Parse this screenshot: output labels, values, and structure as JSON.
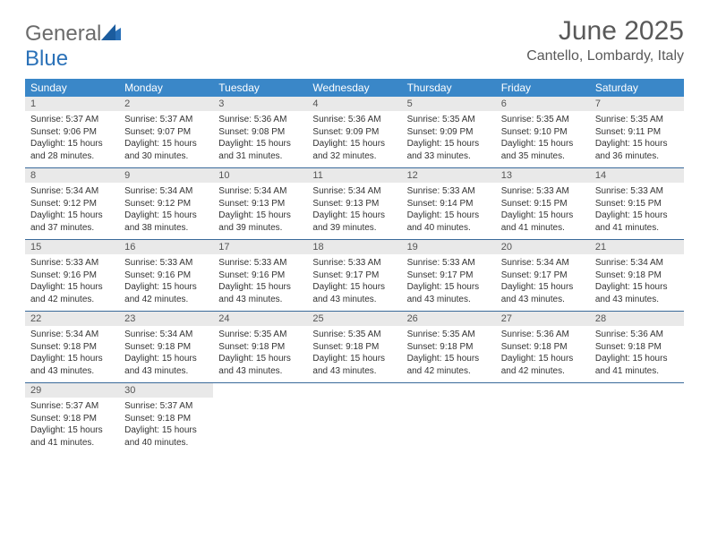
{
  "logo": {
    "part1": "General",
    "part2": "Blue"
  },
  "title": "June 2025",
  "location": "Cantello, Lombardy, Italy",
  "header_color": "#3a87c8",
  "row_border_color": "#3a6a9a",
  "daynum_bg": "#e9e9e9",
  "weekdays": [
    "Sunday",
    "Monday",
    "Tuesday",
    "Wednesday",
    "Thursday",
    "Friday",
    "Saturday"
  ],
  "days": [
    {
      "n": 1,
      "sr": "5:37 AM",
      "ss": "9:06 PM",
      "dl": "15 hours and 28 minutes."
    },
    {
      "n": 2,
      "sr": "5:37 AM",
      "ss": "9:07 PM",
      "dl": "15 hours and 30 minutes."
    },
    {
      "n": 3,
      "sr": "5:36 AM",
      "ss": "9:08 PM",
      "dl": "15 hours and 31 minutes."
    },
    {
      "n": 4,
      "sr": "5:36 AM",
      "ss": "9:09 PM",
      "dl": "15 hours and 32 minutes."
    },
    {
      "n": 5,
      "sr": "5:35 AM",
      "ss": "9:09 PM",
      "dl": "15 hours and 33 minutes."
    },
    {
      "n": 6,
      "sr": "5:35 AM",
      "ss": "9:10 PM",
      "dl": "15 hours and 35 minutes."
    },
    {
      "n": 7,
      "sr": "5:35 AM",
      "ss": "9:11 PM",
      "dl": "15 hours and 36 minutes."
    },
    {
      "n": 8,
      "sr": "5:34 AM",
      "ss": "9:12 PM",
      "dl": "15 hours and 37 minutes."
    },
    {
      "n": 9,
      "sr": "5:34 AM",
      "ss": "9:12 PM",
      "dl": "15 hours and 38 minutes."
    },
    {
      "n": 10,
      "sr": "5:34 AM",
      "ss": "9:13 PM",
      "dl": "15 hours and 39 minutes."
    },
    {
      "n": 11,
      "sr": "5:34 AM",
      "ss": "9:13 PM",
      "dl": "15 hours and 39 minutes."
    },
    {
      "n": 12,
      "sr": "5:33 AM",
      "ss": "9:14 PM",
      "dl": "15 hours and 40 minutes."
    },
    {
      "n": 13,
      "sr": "5:33 AM",
      "ss": "9:15 PM",
      "dl": "15 hours and 41 minutes."
    },
    {
      "n": 14,
      "sr": "5:33 AM",
      "ss": "9:15 PM",
      "dl": "15 hours and 41 minutes."
    },
    {
      "n": 15,
      "sr": "5:33 AM",
      "ss": "9:16 PM",
      "dl": "15 hours and 42 minutes."
    },
    {
      "n": 16,
      "sr": "5:33 AM",
      "ss": "9:16 PM",
      "dl": "15 hours and 42 minutes."
    },
    {
      "n": 17,
      "sr": "5:33 AM",
      "ss": "9:16 PM",
      "dl": "15 hours and 43 minutes."
    },
    {
      "n": 18,
      "sr": "5:33 AM",
      "ss": "9:17 PM",
      "dl": "15 hours and 43 minutes."
    },
    {
      "n": 19,
      "sr": "5:33 AM",
      "ss": "9:17 PM",
      "dl": "15 hours and 43 minutes."
    },
    {
      "n": 20,
      "sr": "5:34 AM",
      "ss": "9:17 PM",
      "dl": "15 hours and 43 minutes."
    },
    {
      "n": 21,
      "sr": "5:34 AM",
      "ss": "9:18 PM",
      "dl": "15 hours and 43 minutes."
    },
    {
      "n": 22,
      "sr": "5:34 AM",
      "ss": "9:18 PM",
      "dl": "15 hours and 43 minutes."
    },
    {
      "n": 23,
      "sr": "5:34 AM",
      "ss": "9:18 PM",
      "dl": "15 hours and 43 minutes."
    },
    {
      "n": 24,
      "sr": "5:35 AM",
      "ss": "9:18 PM",
      "dl": "15 hours and 43 minutes."
    },
    {
      "n": 25,
      "sr": "5:35 AM",
      "ss": "9:18 PM",
      "dl": "15 hours and 43 minutes."
    },
    {
      "n": 26,
      "sr": "5:35 AM",
      "ss": "9:18 PM",
      "dl": "15 hours and 42 minutes."
    },
    {
      "n": 27,
      "sr": "5:36 AM",
      "ss": "9:18 PM",
      "dl": "15 hours and 42 minutes."
    },
    {
      "n": 28,
      "sr": "5:36 AM",
      "ss": "9:18 PM",
      "dl": "15 hours and 41 minutes."
    },
    {
      "n": 29,
      "sr": "5:37 AM",
      "ss": "9:18 PM",
      "dl": "15 hours and 41 minutes."
    },
    {
      "n": 30,
      "sr": "5:37 AM",
      "ss": "9:18 PM",
      "dl": "15 hours and 40 minutes."
    }
  ],
  "labels": {
    "sunrise": "Sunrise:",
    "sunset": "Sunset:",
    "daylight": "Daylight:"
  }
}
